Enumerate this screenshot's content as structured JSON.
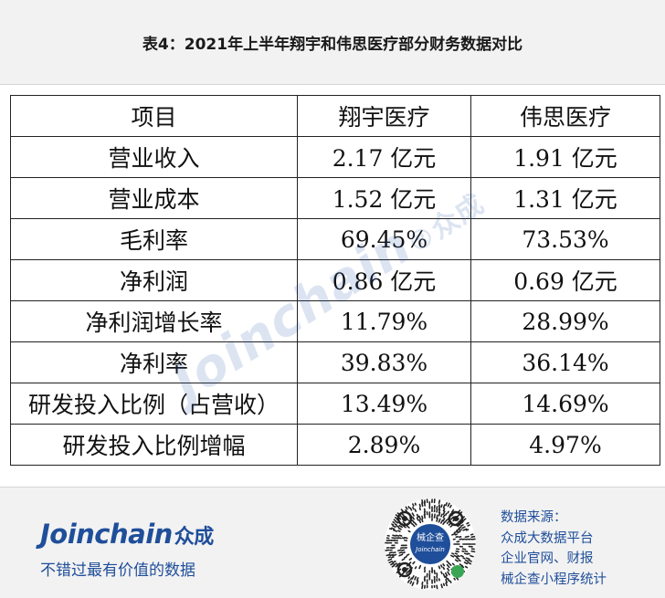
{
  "title": "表4：2021年上半年翔宇和伟思医疗部分财务数据对比",
  "table": {
    "headers": [
      "项目",
      "翔宇医疗",
      "伟思医疗"
    ],
    "rows": [
      [
        "营业收入",
        "2.17 亿元",
        "1.91 亿元"
      ],
      [
        "营业成本",
        "1.52 亿元",
        "1.31 亿元"
      ],
      [
        "毛利率",
        "69.45%",
        "73.53%"
      ],
      [
        "净利润",
        "0.86 亿元",
        "0.69 亿元"
      ],
      [
        "净利润增长率",
        "11.79%",
        "28.99%"
      ],
      [
        "净利率",
        "39.83%",
        "36.14%"
      ],
      [
        "研发投入比例（占营收）",
        "13.49%",
        "14.69%"
      ],
      [
        "研发投入比例增幅",
        "2.89%",
        "4.97%"
      ]
    ]
  },
  "watermark": {
    "text": "Joinchain",
    "mark": "®",
    "cn": "众成"
  },
  "footer": {
    "logo_en": "Joinchain",
    "logo_cn": "众成",
    "slogan": "不错过最有价值的数据",
    "qr_label": "械企查",
    "qr_label_en": "Joinchain",
    "source_lines": [
      "数据来源：",
      "众成大数据平台",
      "企业官网、财报",
      "械企查小程序统计"
    ]
  },
  "colors": {
    "brand": "#1f4e9a",
    "background": "#f2f2f2",
    "table_bg": "#ffffff",
    "border": "#222222"
  },
  "icons": {
    "qr": "qr-code-icon"
  }
}
